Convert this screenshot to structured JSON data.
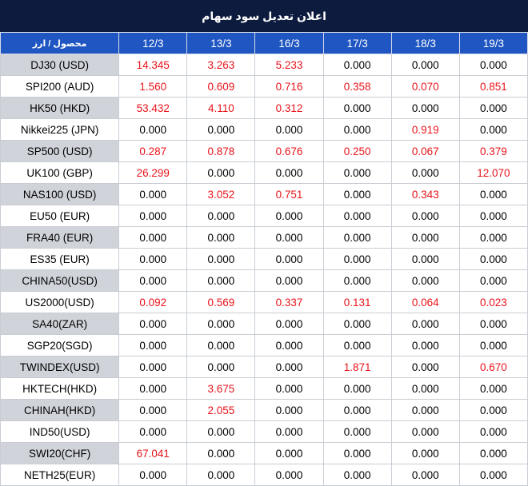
{
  "title": "اعلان تعدیل سود سهام",
  "header": {
    "symbol_label": "محصول / ارز",
    "dates": [
      "12/3",
      "13/3",
      "16/3",
      "17/3",
      "18/3",
      "19/3"
    ]
  },
  "colors": {
    "title_bg": "#0d1b3e",
    "header_bg": "#1f56c2",
    "highlight_text": "#e8141b",
    "zero_text": "#000000",
    "symbol_band": "#d0d4da"
  },
  "rows": [
    {
      "symbol": "DJ30 (USD)",
      "values": [
        "14.345",
        "3.263",
        "5.233",
        "0.000",
        "0.000",
        "0.000"
      ]
    },
    {
      "symbol": "SPI200 (AUD)",
      "values": [
        "1.560",
        "0.609",
        "0.716",
        "0.358",
        "0.070",
        "0.851"
      ]
    },
    {
      "symbol": "HK50 (HKD)",
      "values": [
        "53.432",
        "4.110",
        "0.312",
        "0.000",
        "0.000",
        "0.000"
      ]
    },
    {
      "symbol": "Nikkei225 (JPN)",
      "values": [
        "0.000",
        "0.000",
        "0.000",
        "0.000",
        "0.919",
        "0.000"
      ]
    },
    {
      "symbol": "SP500 (USD)",
      "values": [
        "0.287",
        "0.878",
        "0.676",
        "0.250",
        "0.067",
        "0.379"
      ]
    },
    {
      "symbol": "UK100 (GBP)",
      "values": [
        "26.299",
        "0.000",
        "0.000",
        "0.000",
        "0.000",
        "12.070"
      ]
    },
    {
      "symbol": "NAS100 (USD)",
      "values": [
        "0.000",
        "3.052",
        "0.751",
        "0.000",
        "0.343",
        "0.000"
      ]
    },
    {
      "symbol": "EU50 (EUR)",
      "values": [
        "0.000",
        "0.000",
        "0.000",
        "0.000",
        "0.000",
        "0.000"
      ]
    },
    {
      "symbol": "FRA40 (EUR)",
      "values": [
        "0.000",
        "0.000",
        "0.000",
        "0.000",
        "0.000",
        "0.000"
      ]
    },
    {
      "symbol": "ES35 (EUR)",
      "values": [
        "0.000",
        "0.000",
        "0.000",
        "0.000",
        "0.000",
        "0.000"
      ]
    },
    {
      "symbol": "CHINA50(USD)",
      "values": [
        "0.000",
        "0.000",
        "0.000",
        "0.000",
        "0.000",
        "0.000"
      ]
    },
    {
      "symbol": "US2000(USD)",
      "values": [
        "0.092",
        "0.569",
        "0.337",
        "0.131",
        "0.064",
        "0.023"
      ]
    },
    {
      "symbol": "SA40(ZAR)",
      "values": [
        "0.000",
        "0.000",
        "0.000",
        "0.000",
        "0.000",
        "0.000"
      ]
    },
    {
      "symbol": "SGP20(SGD)",
      "values": [
        "0.000",
        "0.000",
        "0.000",
        "0.000",
        "0.000",
        "0.000"
      ]
    },
    {
      "symbol": "TWINDEX(USD)",
      "values": [
        "0.000",
        "0.000",
        "0.000",
        "1.871",
        "0.000",
        "0.670"
      ]
    },
    {
      "symbol": "HKTECH(HKD)",
      "values": [
        "0.000",
        "3.675",
        "0.000",
        "0.000",
        "0.000",
        "0.000"
      ]
    },
    {
      "symbol": "CHINAH(HKD)",
      "values": [
        "0.000",
        "2.055",
        "0.000",
        "0.000",
        "0.000",
        "0.000"
      ]
    },
    {
      "symbol": "IND50(USD)",
      "values": [
        "0.000",
        "0.000",
        "0.000",
        "0.000",
        "0.000",
        "0.000"
      ]
    },
    {
      "symbol": "SWI20(CHF)",
      "values": [
        "67.041",
        "0.000",
        "0.000",
        "0.000",
        "0.000",
        "0.000"
      ]
    },
    {
      "symbol": "NETH25(EUR)",
      "values": [
        "0.000",
        "0.000",
        "0.000",
        "0.000",
        "0.000",
        "0.000"
      ]
    }
  ]
}
